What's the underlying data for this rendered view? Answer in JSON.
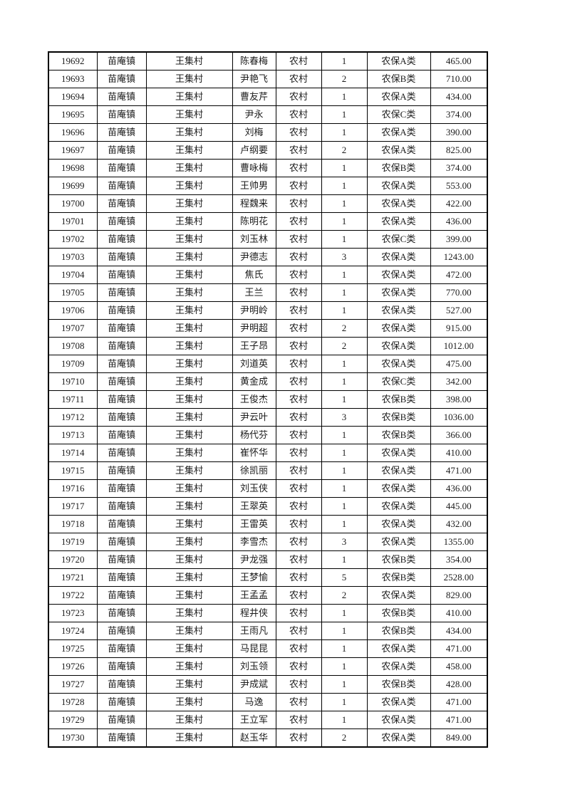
{
  "page": {
    "background_color": "#ffffff",
    "text_color": "#1c1c1c",
    "border_color": "#000000"
  },
  "table": {
    "rows": [
      [
        "19692",
        "苗庵镇",
        "王集村",
        "陈春梅",
        "农村",
        "1",
        "农保A类",
        "465.00"
      ],
      [
        "19693",
        "苗庵镇",
        "王集村",
        "尹艳飞",
        "农村",
        "2",
        "农保B类",
        "710.00"
      ],
      [
        "19694",
        "苗庵镇",
        "王集村",
        "曹友芹",
        "农村",
        "1",
        "农保A类",
        "434.00"
      ],
      [
        "19695",
        "苗庵镇",
        "王集村",
        "尹永",
        "农村",
        "1",
        "农保C类",
        "374.00"
      ],
      [
        "19696",
        "苗庵镇",
        "王集村",
        "刘梅",
        "农村",
        "1",
        "农保A类",
        "390.00"
      ],
      [
        "19697",
        "苗庵镇",
        "王集村",
        "卢纲要",
        "农村",
        "2",
        "农保A类",
        "825.00"
      ],
      [
        "19698",
        "苗庵镇",
        "王集村",
        "曹咏梅",
        "农村",
        "1",
        "农保B类",
        "374.00"
      ],
      [
        "19699",
        "苗庵镇",
        "王集村",
        "王帅男",
        "农村",
        "1",
        "农保A类",
        "553.00"
      ],
      [
        "19700",
        "苗庵镇",
        "王集村",
        "程魏来",
        "农村",
        "1",
        "农保A类",
        "422.00"
      ],
      [
        "19701",
        "苗庵镇",
        "王集村",
        "陈明花",
        "农村",
        "1",
        "农保A类",
        "436.00"
      ],
      [
        "19702",
        "苗庵镇",
        "王集村",
        "刘玉林",
        "农村",
        "1",
        "农保C类",
        "399.00"
      ],
      [
        "19703",
        "苗庵镇",
        "王集村",
        "尹德志",
        "农村",
        "3",
        "农保A类",
        "1243.00"
      ],
      [
        "19704",
        "苗庵镇",
        "王集村",
        "焦氏",
        "农村",
        "1",
        "农保A类",
        "472.00"
      ],
      [
        "19705",
        "苗庵镇",
        "王集村",
        "王兰",
        "农村",
        "1",
        "农保A类",
        "770.00"
      ],
      [
        "19706",
        "苗庵镇",
        "王集村",
        "尹明岭",
        "农村",
        "1",
        "农保A类",
        "527.00"
      ],
      [
        "19707",
        "苗庵镇",
        "王集村",
        "尹明超",
        "农村",
        "2",
        "农保A类",
        "915.00"
      ],
      [
        "19708",
        "苗庵镇",
        "王集村",
        "王子昂",
        "农村",
        "2",
        "农保A类",
        "1012.00"
      ],
      [
        "19709",
        "苗庵镇",
        "王集村",
        "刘道英",
        "农村",
        "1",
        "农保A类",
        "475.00"
      ],
      [
        "19710",
        "苗庵镇",
        "王集村",
        "黄金成",
        "农村",
        "1",
        "农保C类",
        "342.00"
      ],
      [
        "19711",
        "苗庵镇",
        "王集村",
        "王俊杰",
        "农村",
        "1",
        "农保B类",
        "398.00"
      ],
      [
        "19712",
        "苗庵镇",
        "王集村",
        "尹云叶",
        "农村",
        "3",
        "农保B类",
        "1036.00"
      ],
      [
        "19713",
        "苗庵镇",
        "王集村",
        "杨代芬",
        "农村",
        "1",
        "农保B类",
        "366.00"
      ],
      [
        "19714",
        "苗庵镇",
        "王集村",
        "崔怀华",
        "农村",
        "1",
        "农保A类",
        "410.00"
      ],
      [
        "19715",
        "苗庵镇",
        "王集村",
        "徐凯丽",
        "农村",
        "1",
        "农保A类",
        "471.00"
      ],
      [
        "19716",
        "苗庵镇",
        "王集村",
        "刘玉侠",
        "农村",
        "1",
        "农保A类",
        "436.00"
      ],
      [
        "19717",
        "苗庵镇",
        "王集村",
        "王翠英",
        "农村",
        "1",
        "农保A类",
        "445.00"
      ],
      [
        "19718",
        "苗庵镇",
        "王集村",
        "王雷英",
        "农村",
        "1",
        "农保A类",
        "432.00"
      ],
      [
        "19719",
        "苗庵镇",
        "王集村",
        "李雪杰",
        "农村",
        "3",
        "农保A类",
        "1355.00"
      ],
      [
        "19720",
        "苗庵镇",
        "王集村",
        "尹龙强",
        "农村",
        "1",
        "农保B类",
        "354.00"
      ],
      [
        "19721",
        "苗庵镇",
        "王集村",
        "王梦愉",
        "农村",
        "5",
        "农保B类",
        "2528.00"
      ],
      [
        "19722",
        "苗庵镇",
        "王集村",
        "王孟孟",
        "农村",
        "2",
        "农保A类",
        "829.00"
      ],
      [
        "19723",
        "苗庵镇",
        "王集村",
        "程井侠",
        "农村",
        "1",
        "农保B类",
        "410.00"
      ],
      [
        "19724",
        "苗庵镇",
        "王集村",
        "王雨凡",
        "农村",
        "1",
        "农保B类",
        "434.00"
      ],
      [
        "19725",
        "苗庵镇",
        "王集村",
        "马昆昆",
        "农村",
        "1",
        "农保A类",
        "471.00"
      ],
      [
        "19726",
        "苗庵镇",
        "王集村",
        "刘玉领",
        "农村",
        "1",
        "农保A类",
        "458.00"
      ],
      [
        "19727",
        "苗庵镇",
        "王集村",
        "尹成斌",
        "农村",
        "1",
        "农保B类",
        "428.00"
      ],
      [
        "19728",
        "苗庵镇",
        "王集村",
        "马逸",
        "农村",
        "1",
        "农保A类",
        "471.00"
      ],
      [
        "19729",
        "苗庵镇",
        "王集村",
        "王立军",
        "农村",
        "1",
        "农保A类",
        "471.00"
      ],
      [
        "19730",
        "苗庵镇",
        "王集村",
        "赵玉华",
        "农村",
        "2",
        "农保A类",
        "849.00"
      ]
    ]
  }
}
